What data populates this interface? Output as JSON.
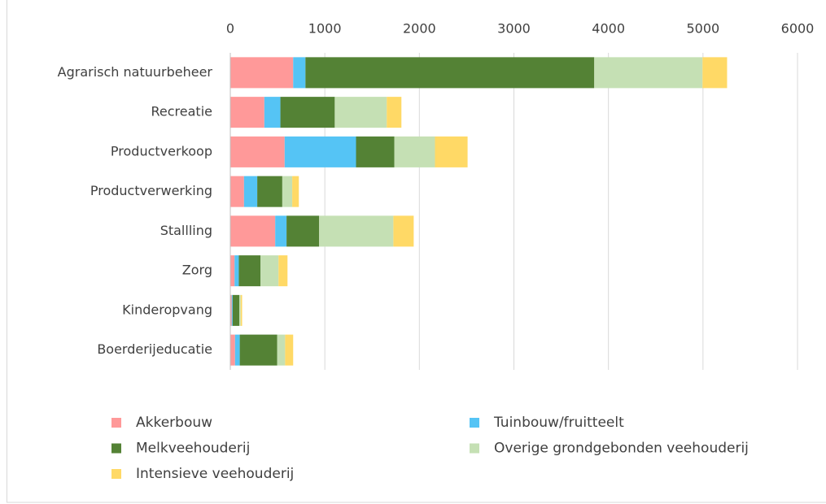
{
  "chart_data": {
    "type": "stacked-barh",
    "categories": [
      "Agrarisch natuurbeheer",
      "Recreatie",
      "Productverkoop",
      "Productverwerking",
      "Stallling",
      "Zorg",
      "Kinderopvang",
      "Boerderijeducatie"
    ],
    "series": [
      {
        "name": "Akkerbouw",
        "color": "#ff9999",
        "values": [
          665,
          360,
          575,
          145,
          475,
          45,
          15,
          50
        ]
      },
      {
        "name": "Tuinbouw/fruitteelt",
        "color": "#55c4f5",
        "values": [
          130,
          170,
          755,
          140,
          120,
          45,
          10,
          50
        ]
      },
      {
        "name": "Melkveehouderij",
        "color": "#548235",
        "values": [
          3055,
          575,
          405,
          265,
          345,
          230,
          70,
          395
        ]
      },
      {
        "name": "Overige grondgebonden veehouderij",
        "color": "#c5e0b4",
        "values": [
          1145,
          550,
          430,
          105,
          785,
          190,
          15,
          85
        ]
      },
      {
        "name": "Intensieve veehouderij",
        "color": "#ffd966",
        "values": [
          260,
          155,
          345,
          70,
          215,
          95,
          15,
          85
        ]
      }
    ],
    "xlim": [
      0,
      6000
    ],
    "xticks": [
      0,
      1000,
      2000,
      3000,
      4000,
      5000,
      6000
    ],
    "grid": true
  }
}
